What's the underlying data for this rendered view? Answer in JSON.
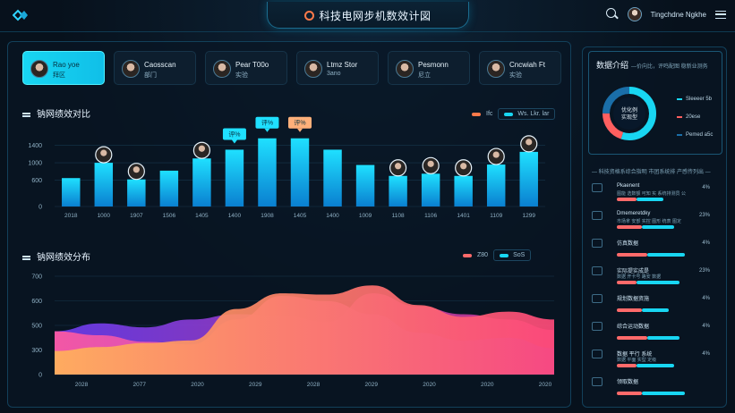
{
  "header": {
    "title": "科技电网步机数效计図",
    "user_name": "Tingchdne Ngkhe"
  },
  "cards": [
    {
      "line1": "Rao yoe",
      "line2": "拜区",
      "active": true
    },
    {
      "line1": "Caosscan",
      "line2": "部门",
      "active": false
    },
    {
      "line1": "Pear T00o",
      "line2": "实验",
      "active": false
    },
    {
      "line1": "Ltmz Stor",
      "line2": "3ano",
      "active": false
    },
    {
      "line1": "Pesmonn",
      "line2": "尼立",
      "active": false
    },
    {
      "line1": "Cncwiah Ft",
      "line2": "实验",
      "active": false
    }
  ],
  "chart1": {
    "section_title": "钠网绩效对比",
    "legend_a": "Ifc",
    "legend_b": "Ws. Lkr. lar"
  },
  "chart2": {
    "section_title": "钠网绩效分布",
    "legend_a": "Z80",
    "legend_b": "SoS"
  },
  "chart_data": [
    {
      "type": "bar",
      "title": "钠网绩效对比",
      "categories": [
        "2018",
        "1000",
        "1907",
        "1506",
        "1405",
        "1400",
        "1908",
        "1405",
        "1400",
        "1009",
        "1108",
        "1106",
        "1401",
        "1109",
        "1299"
      ],
      "values": [
        650,
        1000,
        620,
        820,
        1100,
        1300,
        1560,
        1560,
        1300,
        950,
        700,
        750,
        700,
        960,
        1250
      ],
      "callouts": [
        {
          "index": 5,
          "label": "评%"
        },
        {
          "index": 6,
          "label": "评%"
        },
        {
          "index": 7,
          "label": "评%"
        }
      ],
      "avatars_on": [
        1,
        2,
        4,
        10,
        11,
        12,
        13,
        14
      ],
      "yticks": [
        0,
        600,
        1000,
        1400
      ],
      "ytick_labels": [
        "0",
        "600",
        "1000",
        "1400"
      ],
      "ylim": [
        0,
        1800
      ]
    },
    {
      "type": "area",
      "title": "钠网绩效分布",
      "x_labels": [
        "2028",
        "2077",
        "2020",
        "2029",
        "2028",
        "2029",
        "2020",
        "2020",
        "2020"
      ],
      "ytick_labels": [
        "0",
        "300",
        "500",
        "600",
        "700"
      ],
      "ylim": [
        0,
        750
      ],
      "series": [
        {
          "values": [
            330,
            300,
            250,
            230,
            420,
            600,
            560,
            460,
            320,
            260,
            280,
            200
          ]
        },
        {
          "values": [
            180,
            210,
            240,
            260,
            500,
            620,
            610,
            680,
            530,
            440,
            480,
            420
          ]
        },
        {
          "values": [
            330,
            390,
            360,
            420,
            460,
            450,
            400,
            620,
            520,
            460,
            420,
            340
          ]
        }
      ]
    }
  ],
  "side": {
    "title": "数据介绍",
    "subtitle": "—价向比，评鸣配图 稳新业测务",
    "donut_center_1": "优化例",
    "donut_center_2": "实现型",
    "donut": [
      {
        "value": 55,
        "color": "#18d6f2"
      },
      {
        "value": 20,
        "color": "#ff5f5f"
      },
      {
        "value": 25,
        "color": "#1a6ea8"
      }
    ],
    "donut_legend": [
      "Sleeeer 5b",
      "20ese",
      "Pemed a5c"
    ],
    "rank_head": "— 科技资格系综合指明 市团系统排 产感传列出 —",
    "ranks": [
      {
        "name": "Pkaenent",
        "desc": "图能 选数额 可知 实 系统排测员 公",
        "pct": "4%"
      },
      {
        "name": "Dmemeretdky",
        "desc": "市场拿 安部 实控 图形 统表 图定",
        "pct": "23%"
      },
      {
        "name": "仿真数据",
        "desc": "",
        "pct": "4%"
      },
      {
        "name": "实际提实成是",
        "desc": "数据 开卡号 路安 数据",
        "pct": "23%"
      },
      {
        "name": "规划数据资施",
        "desc": "",
        "pct": "4%"
      },
      {
        "name": "综合运动数据",
        "desc": "",
        "pct": "4%"
      },
      {
        "name": "数据 平行 系统",
        "desc": "数据 平面 实型 定级",
        "pct": "4%"
      },
      {
        "name": "领取数据",
        "desc": "",
        "pct": ""
      }
    ]
  }
}
